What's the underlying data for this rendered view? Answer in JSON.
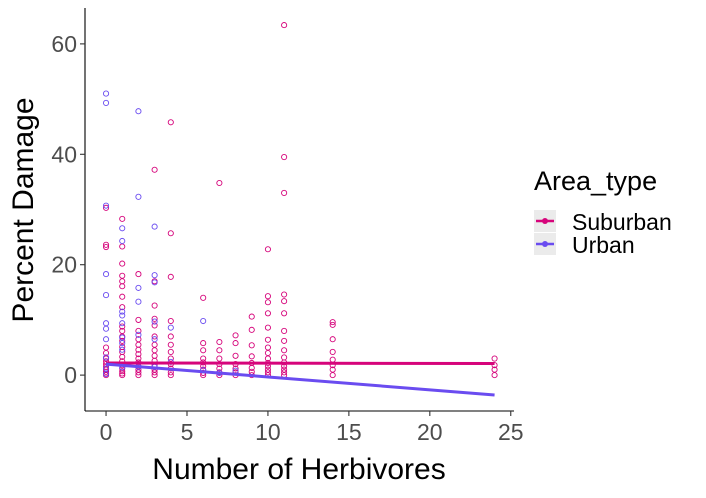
{
  "chart_data": {
    "type": "scatter",
    "title": "",
    "xlabel": "Number of Herbivores",
    "ylabel": "Percent Damage",
    "xlim": [
      -1.3,
      25.2
    ],
    "ylim": [
      -6.5,
      66.5
    ],
    "xticks": [
      0,
      5,
      10,
      15,
      20,
      25
    ],
    "yticks": [
      0,
      20,
      40,
      60
    ],
    "grid": false,
    "legend": {
      "title": "Area_type",
      "placement": "right",
      "entries": [
        "Suburban",
        "Urban"
      ]
    },
    "series": [
      {
        "name": "Suburban",
        "color": "#d6047b",
        "marker": "open-circle",
        "points": [
          [
            0,
            0
          ],
          [
            0,
            0.3
          ],
          [
            0,
            0.6
          ],
          [
            0,
            1
          ],
          [
            0,
            1.5
          ],
          [
            0,
            2
          ],
          [
            0,
            2.5
          ],
          [
            0,
            3
          ],
          [
            0,
            4
          ],
          [
            0,
            5
          ],
          [
            0,
            23.2
          ],
          [
            0,
            23.6
          ],
          [
            0,
            30.3
          ],
          [
            1,
            0
          ],
          [
            1,
            0.3
          ],
          [
            1,
            0.7
          ],
          [
            1,
            1.2
          ],
          [
            1,
            1.8
          ],
          [
            1,
            2.5
          ],
          [
            1,
            3.3
          ],
          [
            1,
            4.2
          ],
          [
            1,
            5.1
          ],
          [
            1,
            6.2
          ],
          [
            1,
            7
          ],
          [
            1,
            8
          ],
          [
            1,
            8.8
          ],
          [
            1,
            12.3
          ],
          [
            1,
            14.2
          ],
          [
            1,
            16.1
          ],
          [
            1,
            17
          ],
          [
            1,
            18
          ],
          [
            1,
            20.2
          ],
          [
            1,
            23.3
          ],
          [
            1,
            28.3
          ],
          [
            2,
            0
          ],
          [
            2,
            0.5
          ],
          [
            2,
            1
          ],
          [
            2,
            1.6
          ],
          [
            2,
            2.3
          ],
          [
            2,
            3
          ],
          [
            2,
            3.8
          ],
          [
            2,
            4.6
          ],
          [
            2,
            5.5
          ],
          [
            2,
            6.5
          ],
          [
            2,
            8
          ],
          [
            2,
            10
          ],
          [
            2,
            18.3
          ],
          [
            3,
            0
          ],
          [
            3,
            0.5
          ],
          [
            3,
            1
          ],
          [
            3,
            1.8
          ],
          [
            3,
            2.6
          ],
          [
            3,
            3.5
          ],
          [
            3,
            4.5
          ],
          [
            3,
            5.5
          ],
          [
            3,
            7
          ],
          [
            3,
            9
          ],
          [
            3,
            10.2
          ],
          [
            3,
            12.6
          ],
          [
            3,
            17
          ],
          [
            3,
            37.2
          ],
          [
            4,
            0
          ],
          [
            4,
            0.5
          ],
          [
            4,
            1.2
          ],
          [
            4,
            2
          ],
          [
            4,
            3
          ],
          [
            4,
            4.2
          ],
          [
            4,
            5.5
          ],
          [
            4,
            7
          ],
          [
            4,
            9.8
          ],
          [
            4,
            17.8
          ],
          [
            4,
            25.7
          ],
          [
            4,
            45.8
          ],
          [
            6,
            0
          ],
          [
            6,
            0.4
          ],
          [
            6,
            1
          ],
          [
            6,
            1.6
          ],
          [
            6,
            2.3
          ],
          [
            6,
            3
          ],
          [
            6,
            4.5
          ],
          [
            6,
            5.8
          ],
          [
            6,
            14
          ],
          [
            7,
            0
          ],
          [
            7,
            0.5
          ],
          [
            7,
            1.2
          ],
          [
            7,
            2
          ],
          [
            7,
            3
          ],
          [
            7,
            4.5
          ],
          [
            7,
            6
          ],
          [
            7,
            34.8
          ],
          [
            8,
            0
          ],
          [
            8,
            0.5
          ],
          [
            8,
            1.2
          ],
          [
            8,
            2
          ],
          [
            8,
            3.5
          ],
          [
            8,
            5.8
          ],
          [
            8,
            7.2
          ],
          [
            9,
            0
          ],
          [
            9,
            0.6
          ],
          [
            9,
            1.3
          ],
          [
            9,
            2.2
          ],
          [
            9,
            3.4
          ],
          [
            9,
            5.4
          ],
          [
            9,
            8.2
          ],
          [
            9,
            10.6
          ],
          [
            10,
            0
          ],
          [
            10,
            0.5
          ],
          [
            10,
            1
          ],
          [
            10,
            1.6
          ],
          [
            10,
            2.2
          ],
          [
            10,
            3
          ],
          [
            10,
            4
          ],
          [
            10,
            5
          ],
          [
            10,
            6.4
          ],
          [
            10,
            8.6
          ],
          [
            10,
            11.2
          ],
          [
            10,
            13.2
          ],
          [
            10,
            14.3
          ],
          [
            10,
            22.8
          ],
          [
            11,
            0
          ],
          [
            11,
            0.5
          ],
          [
            11,
            1
          ],
          [
            11,
            1.6
          ],
          [
            11,
            2.3
          ],
          [
            11,
            3.2
          ],
          [
            11,
            4.5
          ],
          [
            11,
            6.2
          ],
          [
            11,
            8
          ],
          [
            11,
            11.2
          ],
          [
            11,
            13.4
          ],
          [
            11,
            14.6
          ],
          [
            11,
            33
          ],
          [
            11,
            39.5
          ],
          [
            11,
            63.4
          ],
          [
            14,
            0
          ],
          [
            14,
            1
          ],
          [
            14,
            1.8
          ],
          [
            14,
            2.8
          ],
          [
            14,
            4.2
          ],
          [
            14,
            6.5
          ],
          [
            14,
            9.1
          ],
          [
            14,
            9.6
          ],
          [
            24,
            0
          ],
          [
            24,
            1
          ],
          [
            24,
            1.8
          ],
          [
            24,
            3
          ]
        ]
      },
      {
        "name": "Urban",
        "color": "#6a4cf0",
        "marker": "open-circle",
        "points": [
          [
            0,
            0.2
          ],
          [
            0,
            1.2
          ],
          [
            0,
            3.2
          ],
          [
            0,
            6.5
          ],
          [
            0,
            8.4
          ],
          [
            0,
            9.4
          ],
          [
            0,
            14.5
          ],
          [
            0,
            18.3
          ],
          [
            0,
            30.7
          ],
          [
            0,
            49.3
          ],
          [
            0,
            51
          ],
          [
            1,
            1.4
          ],
          [
            1,
            4.6
          ],
          [
            1,
            5.8
          ],
          [
            1,
            6.8
          ],
          [
            1,
            9.4
          ],
          [
            1,
            10.8
          ],
          [
            1,
            11.5
          ],
          [
            1,
            24.3
          ],
          [
            1,
            26.6
          ],
          [
            2,
            1.5
          ],
          [
            2,
            7.3
          ],
          [
            2,
            13.3
          ],
          [
            2,
            15.8
          ],
          [
            2,
            32.3
          ],
          [
            2,
            47.8
          ],
          [
            3,
            1.5
          ],
          [
            3,
            6.5
          ],
          [
            3,
            9.7
          ],
          [
            3,
            16.8
          ],
          [
            3,
            18.1
          ],
          [
            3,
            26.9
          ],
          [
            4,
            2.4
          ],
          [
            4,
            8.6
          ],
          [
            6,
            0.9
          ],
          [
            6,
            9.8
          ],
          [
            7,
            0.4
          ],
          [
            8,
            0.8
          ]
        ]
      }
    ],
    "trend_lines": [
      {
        "series": "Suburban",
        "color": "#d6047b",
        "x": [
          0,
          24
        ],
        "y": [
          2.2,
          2.1
        ]
      },
      {
        "series": "Urban",
        "color": "#6a4cf0",
        "x": [
          0,
          24
        ],
        "y": [
          2.0,
          -3.6
        ]
      }
    ]
  }
}
